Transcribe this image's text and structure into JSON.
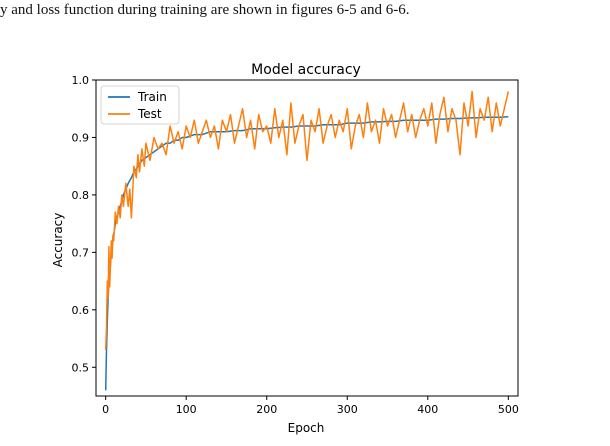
{
  "document": {
    "text_line": "y and loss function during training are shown in figures 6-5 and 6-6."
  },
  "chart_data": {
    "type": "line",
    "title": "Model accuracy",
    "xlabel": "Epoch",
    "ylabel": "Accuracy",
    "xlim": [
      -12,
      512
    ],
    "ylim": [
      0.45,
      1.0
    ],
    "xticks": [
      0,
      100,
      200,
      300,
      400,
      500
    ],
    "yticks": [
      0.5,
      0.6,
      0.7,
      0.8,
      0.9,
      1.0
    ],
    "legend_position": "top-left",
    "grid": false,
    "series": [
      {
        "name": "Train",
        "color": "#1f77b4",
        "x": [
          0,
          1,
          2,
          3,
          4,
          5,
          6,
          7,
          8,
          9,
          10,
          12,
          14,
          16,
          18,
          20,
          22,
          25,
          28,
          30,
          32,
          35,
          38,
          40,
          45,
          50,
          55,
          60,
          65,
          70,
          75,
          80,
          85,
          90,
          95,
          100,
          110,
          120,
          130,
          140,
          150,
          160,
          170,
          180,
          190,
          200,
          210,
          220,
          230,
          240,
          250,
          260,
          270,
          280,
          290,
          300,
          310,
          320,
          330,
          340,
          350,
          360,
          370,
          380,
          390,
          400,
          410,
          420,
          430,
          440,
          450,
          460,
          470,
          480,
          490,
          500
        ],
        "y": [
          0.46,
          0.53,
          0.58,
          0.62,
          0.65,
          0.66,
          0.68,
          0.7,
          0.71,
          0.72,
          0.73,
          0.75,
          0.76,
          0.77,
          0.78,
          0.79,
          0.8,
          0.81,
          0.82,
          0.825,
          0.83,
          0.84,
          0.845,
          0.85,
          0.86,
          0.865,
          0.87,
          0.875,
          0.88,
          0.885,
          0.89,
          0.89,
          0.895,
          0.895,
          0.9,
          0.9,
          0.905,
          0.905,
          0.91,
          0.91,
          0.91,
          0.912,
          0.912,
          0.915,
          0.915,
          0.915,
          0.917,
          0.918,
          0.918,
          0.92,
          0.92,
          0.92,
          0.922,
          0.922,
          0.922,
          0.925,
          0.925,
          0.925,
          0.927,
          0.927,
          0.928,
          0.928,
          0.93,
          0.93,
          0.93,
          0.93,
          0.932,
          0.932,
          0.933,
          0.933,
          0.934,
          0.934,
          0.935,
          0.935,
          0.935,
          0.936
        ]
      },
      {
        "name": "Test",
        "color": "#ff7f0e",
        "x": [
          0,
          1,
          2,
          3,
          4,
          5,
          6,
          7,
          8,
          9,
          10,
          12,
          14,
          16,
          18,
          20,
          22,
          25,
          28,
          30,
          32,
          35,
          38,
          40,
          42,
          45,
          48,
          50,
          55,
          60,
          65,
          70,
          75,
          80,
          85,
          90,
          95,
          100,
          105,
          110,
          115,
          120,
          125,
          130,
          135,
          140,
          145,
          150,
          155,
          160,
          165,
          170,
          175,
          180,
          185,
          190,
          195,
          200,
          205,
          210,
          215,
          220,
          225,
          230,
          235,
          240,
          245,
          250,
          255,
          260,
          265,
          270,
          275,
          280,
          285,
          290,
          295,
          300,
          305,
          310,
          315,
          320,
          325,
          330,
          335,
          340,
          345,
          350,
          355,
          360,
          365,
          370,
          375,
          380,
          385,
          390,
          395,
          400,
          405,
          410,
          415,
          420,
          425,
          430,
          435,
          440,
          445,
          450,
          455,
          460,
          465,
          470,
          475,
          480,
          485,
          490,
          495,
          500
        ],
        "y": [
          0.53,
          0.57,
          0.65,
          0.62,
          0.71,
          0.64,
          0.68,
          0.72,
          0.69,
          0.73,
          0.72,
          0.77,
          0.75,
          0.78,
          0.76,
          0.8,
          0.78,
          0.82,
          0.78,
          0.81,
          0.76,
          0.85,
          0.83,
          0.87,
          0.84,
          0.88,
          0.85,
          0.89,
          0.86,
          0.9,
          0.88,
          0.89,
          0.87,
          0.92,
          0.89,
          0.91,
          0.88,
          0.92,
          0.9,
          0.93,
          0.89,
          0.91,
          0.93,
          0.9,
          0.92,
          0.88,
          0.93,
          0.91,
          0.94,
          0.89,
          0.92,
          0.95,
          0.9,
          0.93,
          0.88,
          0.94,
          0.91,
          0.92,
          0.89,
          0.95,
          0.9,
          0.93,
          0.87,
          0.96,
          0.89,
          0.92,
          0.94,
          0.86,
          0.93,
          0.91,
          0.95,
          0.89,
          0.92,
          0.94,
          0.9,
          0.93,
          0.91,
          0.95,
          0.88,
          0.92,
          0.94,
          0.9,
          0.96,
          0.91,
          0.93,
          0.89,
          0.95,
          0.92,
          0.94,
          0.9,
          0.93,
          0.96,
          0.91,
          0.94,
          0.9,
          0.93,
          0.95,
          0.92,
          0.96,
          0.89,
          0.94,
          0.97,
          0.91,
          0.95,
          0.93,
          0.87,
          0.96,
          0.92,
          0.98,
          0.9,
          0.95,
          0.93,
          0.97,
          0.91,
          0.96,
          0.92,
          0.95,
          0.98
        ]
      }
    ]
  }
}
